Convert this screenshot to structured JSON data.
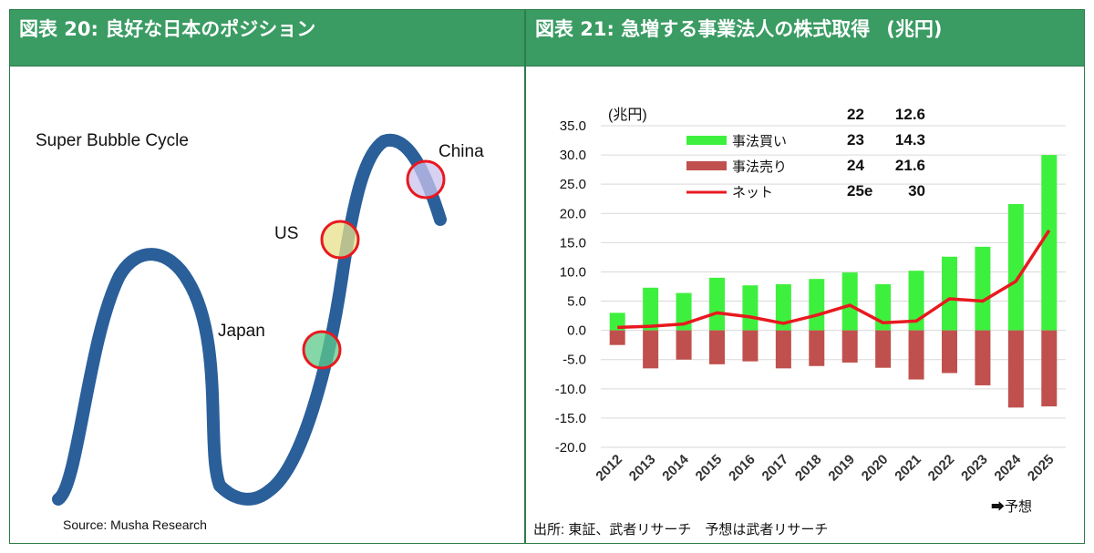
{
  "left": {
    "header": "図表 20: 良好な日本のポジション",
    "diagram_title": "Super Bubble Cycle",
    "labels": {
      "china": "China",
      "us": "US",
      "japan": "Japan"
    },
    "source": "Source: Musha Research",
    "colors": {
      "curve": "#2a5f9a",
      "ring": "#e8191f",
      "china_fill": "#c9c3ee",
      "us_fill": "#e7e08a",
      "japan_fill": "#5ec98a"
    }
  },
  "right": {
    "header": "図表 21: 急増する事業法人の株式取得",
    "header_unit": "(兆円)",
    "footer": "出所: 東証、武者リサーチ　予想は武者リサーチ",
    "forecast_note": "➡予想",
    "colors": {
      "buy": "#3ef03e",
      "sell": "#c0504d",
      "net": "#e8191f"
    }
  },
  "chart_data": {
    "type": "bar",
    "title": "",
    "unit_label": "(兆円)",
    "categories": [
      "2012",
      "2013",
      "2014",
      "2015",
      "2016",
      "2017",
      "2018",
      "2019",
      "2020",
      "2021",
      "2022",
      "2023",
      "2024",
      "2025"
    ],
    "ylim": [
      -20,
      35
    ],
    "yticks": [
      "35.0",
      "30.0",
      "25.0",
      "20.0",
      "15.0",
      "10.0",
      "5.0",
      "0.0",
      "-5.0",
      "-10.0",
      "-15.0",
      "-20.0"
    ],
    "grid": true,
    "legend_position": "top-left",
    "series": [
      {
        "name": "事法買い",
        "type": "bar",
        "values": [
          3.0,
          7.3,
          6.4,
          9.0,
          7.7,
          7.9,
          8.8,
          9.9,
          7.9,
          10.2,
          12.6,
          14.3,
          21.6,
          30.0
        ]
      },
      {
        "name": "事法売り",
        "type": "bar",
        "values": [
          -2.5,
          -6.5,
          -5.0,
          -5.8,
          -5.3,
          -6.5,
          -6.1,
          -5.5,
          -6.4,
          -8.4,
          -7.3,
          -9.4,
          -13.2,
          -13.0
        ]
      },
      {
        "name": "ネット",
        "type": "line",
        "values": [
          0.5,
          0.7,
          1.1,
          3.0,
          2.3,
          1.2,
          2.6,
          4.3,
          1.3,
          1.6,
          5.4,
          5.0,
          8.4,
          17.1
        ]
      }
    ],
    "inset_table": [
      {
        "year": "22",
        "value": "12.6"
      },
      {
        "year": "23",
        "value": "14.3"
      },
      {
        "year": "24",
        "value": "21.6"
      },
      {
        "year": "25e",
        "value": "30"
      }
    ]
  }
}
